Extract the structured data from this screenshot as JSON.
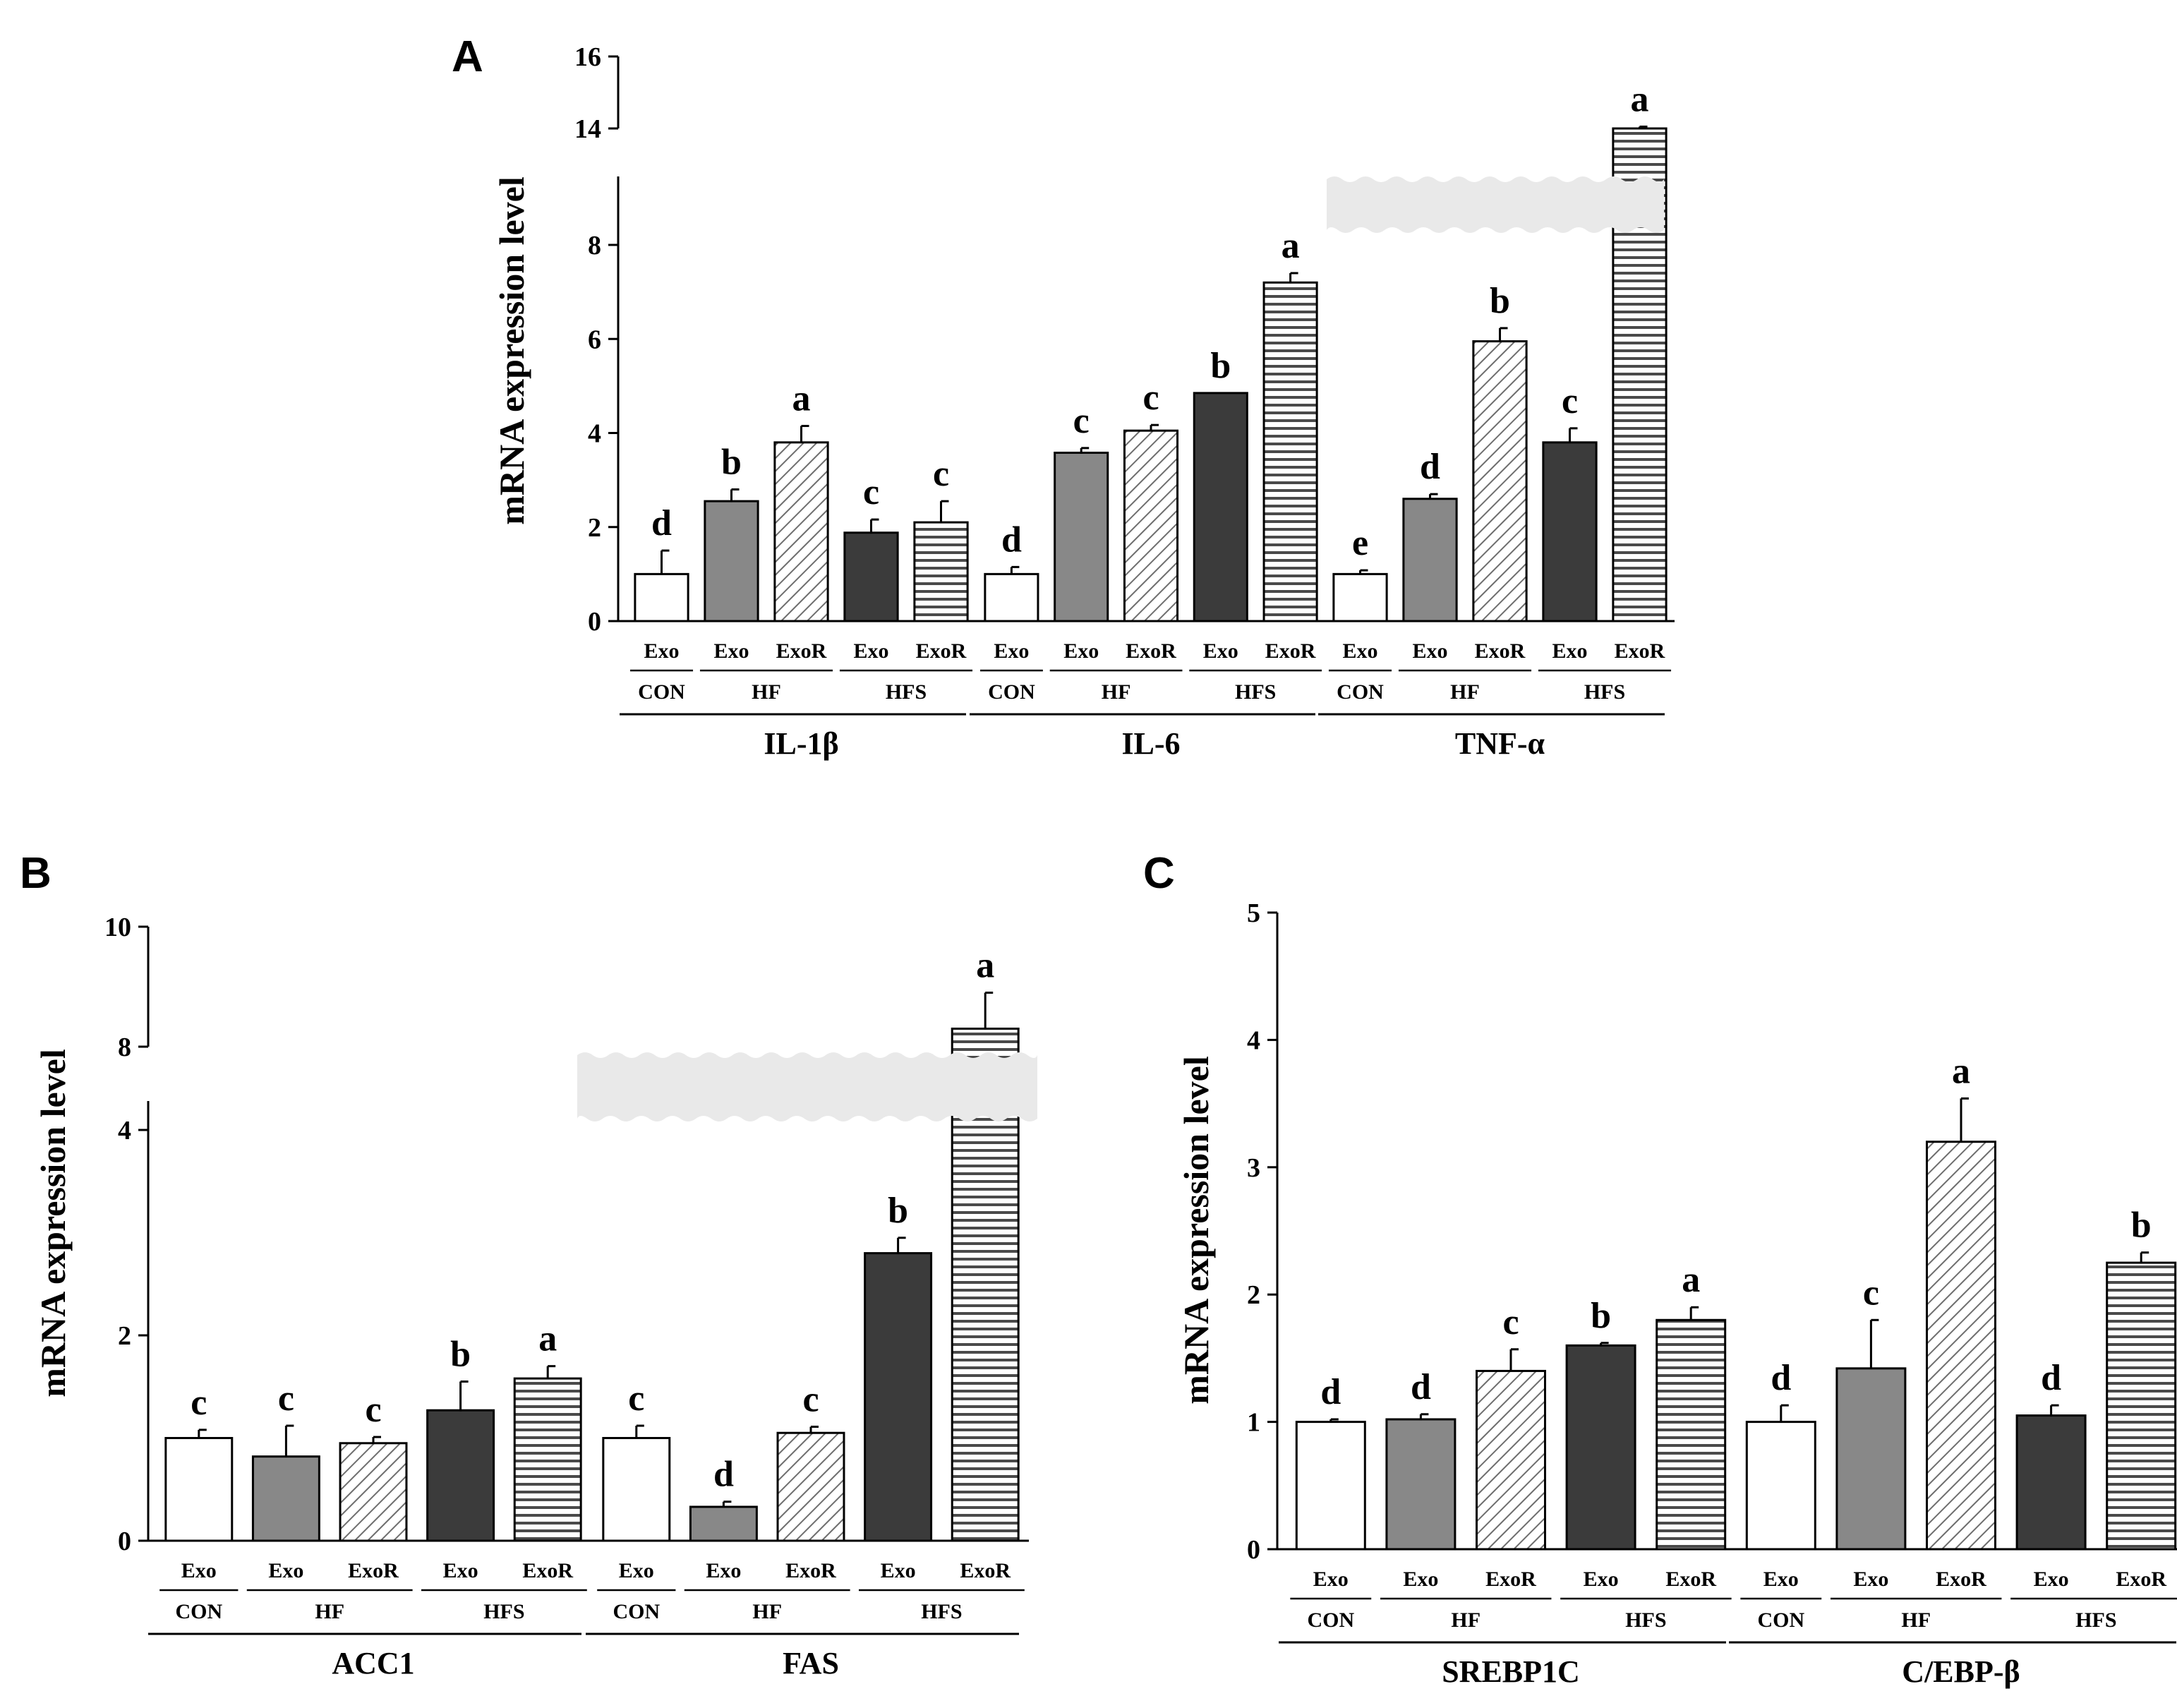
{
  "colors": {
    "con": "#ffffff",
    "hf_exo": "#888888",
    "hfs_exo": "#3b3b3b",
    "stroke": "#000000",
    "hatch": "#6e6e6e",
    "stripe": "#4a4a4a",
    "break_band": "#e9e9e9"
  },
  "patterns": {
    "con_exo": "solid-white",
    "hf_exo": "solid-gray",
    "hf_exor": "diagonal-hatch",
    "hfs_exo": "solid-dark",
    "hfs_exor": "horizontal-stripes"
  },
  "chart_data": [
    {
      "panel": "A",
      "type": "bar",
      "ylabel": "mRNA expression level",
      "yticks": [
        "0",
        "2",
        "4",
        "6",
        "8",
        "14",
        "16"
      ],
      "ylim": [
        0,
        16
      ],
      "axis_break": [
        8.9,
        13.2
      ],
      "bar_labels": [
        "Exo",
        "Exo",
        "ExoR",
        "Exo",
        "ExoR"
      ],
      "group_labels": [
        "CON",
        "HF",
        "HFS"
      ],
      "genes": [
        {
          "name": "IL-1β",
          "values": [
            1.0,
            2.55,
            3.8,
            1.88,
            2.1
          ],
          "errors": [
            0.5,
            0.25,
            0.35,
            0.28,
            0.45
          ],
          "letters": [
            "d",
            "b",
            "a",
            "c",
            "c"
          ]
        },
        {
          "name": "IL-6",
          "values": [
            1.0,
            3.58,
            4.05,
            4.85,
            7.2
          ],
          "errors": [
            0.15,
            0.1,
            0.12,
            0.0,
            0.2
          ],
          "letters": [
            "d",
            "c",
            "c",
            "b",
            "a"
          ]
        },
        {
          "name": "TNF-α",
          "values": [
            1.0,
            2.6,
            5.95,
            3.8,
            14.0
          ],
          "errors": [
            0.08,
            0.1,
            0.28,
            0.3,
            0.05
          ],
          "letters": [
            "e",
            "d",
            "b",
            "c",
            "a"
          ]
        }
      ]
    },
    {
      "panel": "B",
      "type": "bar",
      "ylabel": "mRNA expression level",
      "yticks": [
        "0",
        "2",
        "4",
        "8",
        "10"
      ],
      "ylim": [
        0,
        10
      ],
      "axis_break": [
        4.2,
        7.9
      ],
      "bar_labels": [
        "Exo",
        "Exo",
        "ExoR",
        "Exo",
        "ExoR"
      ],
      "group_labels": [
        "CON",
        "HF",
        "HFS"
      ],
      "genes": [
        {
          "name": "ACC1",
          "values": [
            1.0,
            0.82,
            0.95,
            1.27,
            1.58
          ],
          "errors": [
            0.08,
            0.3,
            0.06,
            0.28,
            0.12
          ],
          "letters": [
            "c",
            "c",
            "c",
            "b",
            "a"
          ]
        },
        {
          "name": "FAS",
          "values": [
            1.0,
            0.33,
            1.05,
            2.8,
            8.3
          ],
          "errors": [
            0.12,
            0.05,
            0.06,
            0.15,
            0.6
          ],
          "letters": [
            "c",
            "d",
            "c",
            "b",
            "a"
          ]
        }
      ]
    },
    {
      "panel": "C",
      "type": "bar",
      "ylabel": "mRNA expression level",
      "yticks": [
        "0",
        "1",
        "2",
        "3",
        "4",
        "5"
      ],
      "ylim": [
        0,
        5
      ],
      "axis_break": null,
      "bar_labels": [
        "Exo",
        "Exo",
        "ExoR",
        "Exo",
        "ExoR"
      ],
      "group_labels": [
        "CON",
        "HF",
        "HFS"
      ],
      "genes": [
        {
          "name": "SREBP1C",
          "values": [
            1.0,
            1.02,
            1.4,
            1.6,
            1.8
          ],
          "errors": [
            0.02,
            0.04,
            0.17,
            0.02,
            0.1
          ],
          "letters": [
            "d",
            "d",
            "c",
            "b",
            "a"
          ]
        },
        {
          "name": "C/EBP-β",
          "values": [
            1.0,
            1.42,
            3.2,
            1.05,
            2.25
          ],
          "errors": [
            0.13,
            0.38,
            0.34,
            0.08,
            0.08
          ],
          "letters": [
            "d",
            "c",
            "a",
            "d",
            "b"
          ]
        }
      ]
    }
  ]
}
